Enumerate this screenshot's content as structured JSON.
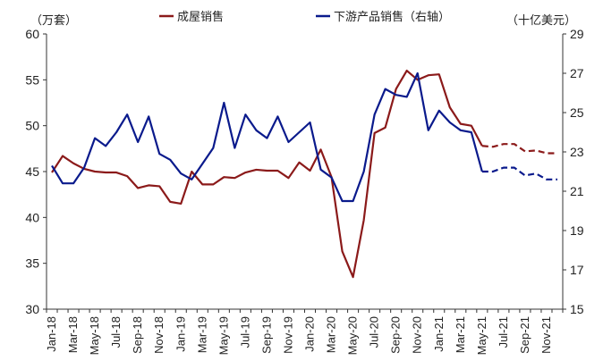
{
  "chart_data": {
    "type": "line",
    "left_unit": "（万套）",
    "right_unit": "（十亿美元）",
    "y_left": {
      "ylim": [
        30,
        60
      ],
      "ticks": [
        30,
        35,
        40,
        45,
        50,
        55,
        60
      ]
    },
    "y_right": {
      "ylim": [
        15,
        29
      ],
      "ticks": [
        15,
        17,
        19,
        21,
        23,
        25,
        27,
        29
      ]
    },
    "x_tick_labels": [
      "Jan-18",
      "Mar-18",
      "May-18",
      "Jul-18",
      "Sep-18",
      "Nov-18",
      "Jan-19",
      "Mar-19",
      "May-19",
      "Jul-19",
      "Sep-19",
      "Nov-19",
      "Jan-20",
      "Mar-20",
      "May-20",
      "Jul-20",
      "Sep-20",
      "Nov-20",
      "Jan-21",
      "Mar-21",
      "May-21",
      "Jul-21",
      "Sep-21",
      "Nov-21"
    ],
    "legend": {
      "placement": "top-center"
    },
    "series": [
      {
        "name": "成屋销售",
        "axis": "left",
        "color": "#8B1A1A",
        "values": [
          44.9,
          46.7,
          45.9,
          45.3,
          45.0,
          44.9,
          44.9,
          44.5,
          43.2,
          43.5,
          43.4,
          41.7,
          41.5,
          45.0,
          43.6,
          43.6,
          44.4,
          44.3,
          44.9,
          45.2,
          45.1,
          45.1,
          44.3,
          46.0,
          45.1,
          47.4,
          44.4,
          36.3,
          33.5,
          39.7,
          49.2,
          49.8,
          54.0,
          56.0,
          55.0,
          55.5,
          55.6,
          52.0,
          50.2,
          50.0,
          47.8,
          47.7,
          48.0,
          48.0,
          47.2,
          47.3,
          47.0,
          47.0
        ],
        "solid_until_index": 40
      },
      {
        "name": "下游产品销售（右轴）",
        "axis": "right",
        "color": "#0A1A8C",
        "values": [
          22.3,
          21.4,
          21.4,
          22.2,
          23.7,
          23.3,
          24.0,
          24.9,
          23.5,
          24.8,
          22.9,
          22.6,
          21.9,
          21.6,
          22.4,
          23.2,
          25.5,
          23.2,
          24.9,
          24.1,
          23.7,
          24.8,
          23.5,
          24.0,
          24.5,
          22.1,
          21.7,
          20.5,
          20.5,
          22.0,
          24.9,
          26.2,
          25.9,
          25.8,
          27.0,
          24.1,
          25.1,
          24.5,
          24.1,
          24.0,
          22.0,
          22.0,
          22.2,
          22.2,
          21.8,
          21.9,
          21.6,
          21.6
        ],
        "solid_until_index": 40
      }
    ]
  }
}
